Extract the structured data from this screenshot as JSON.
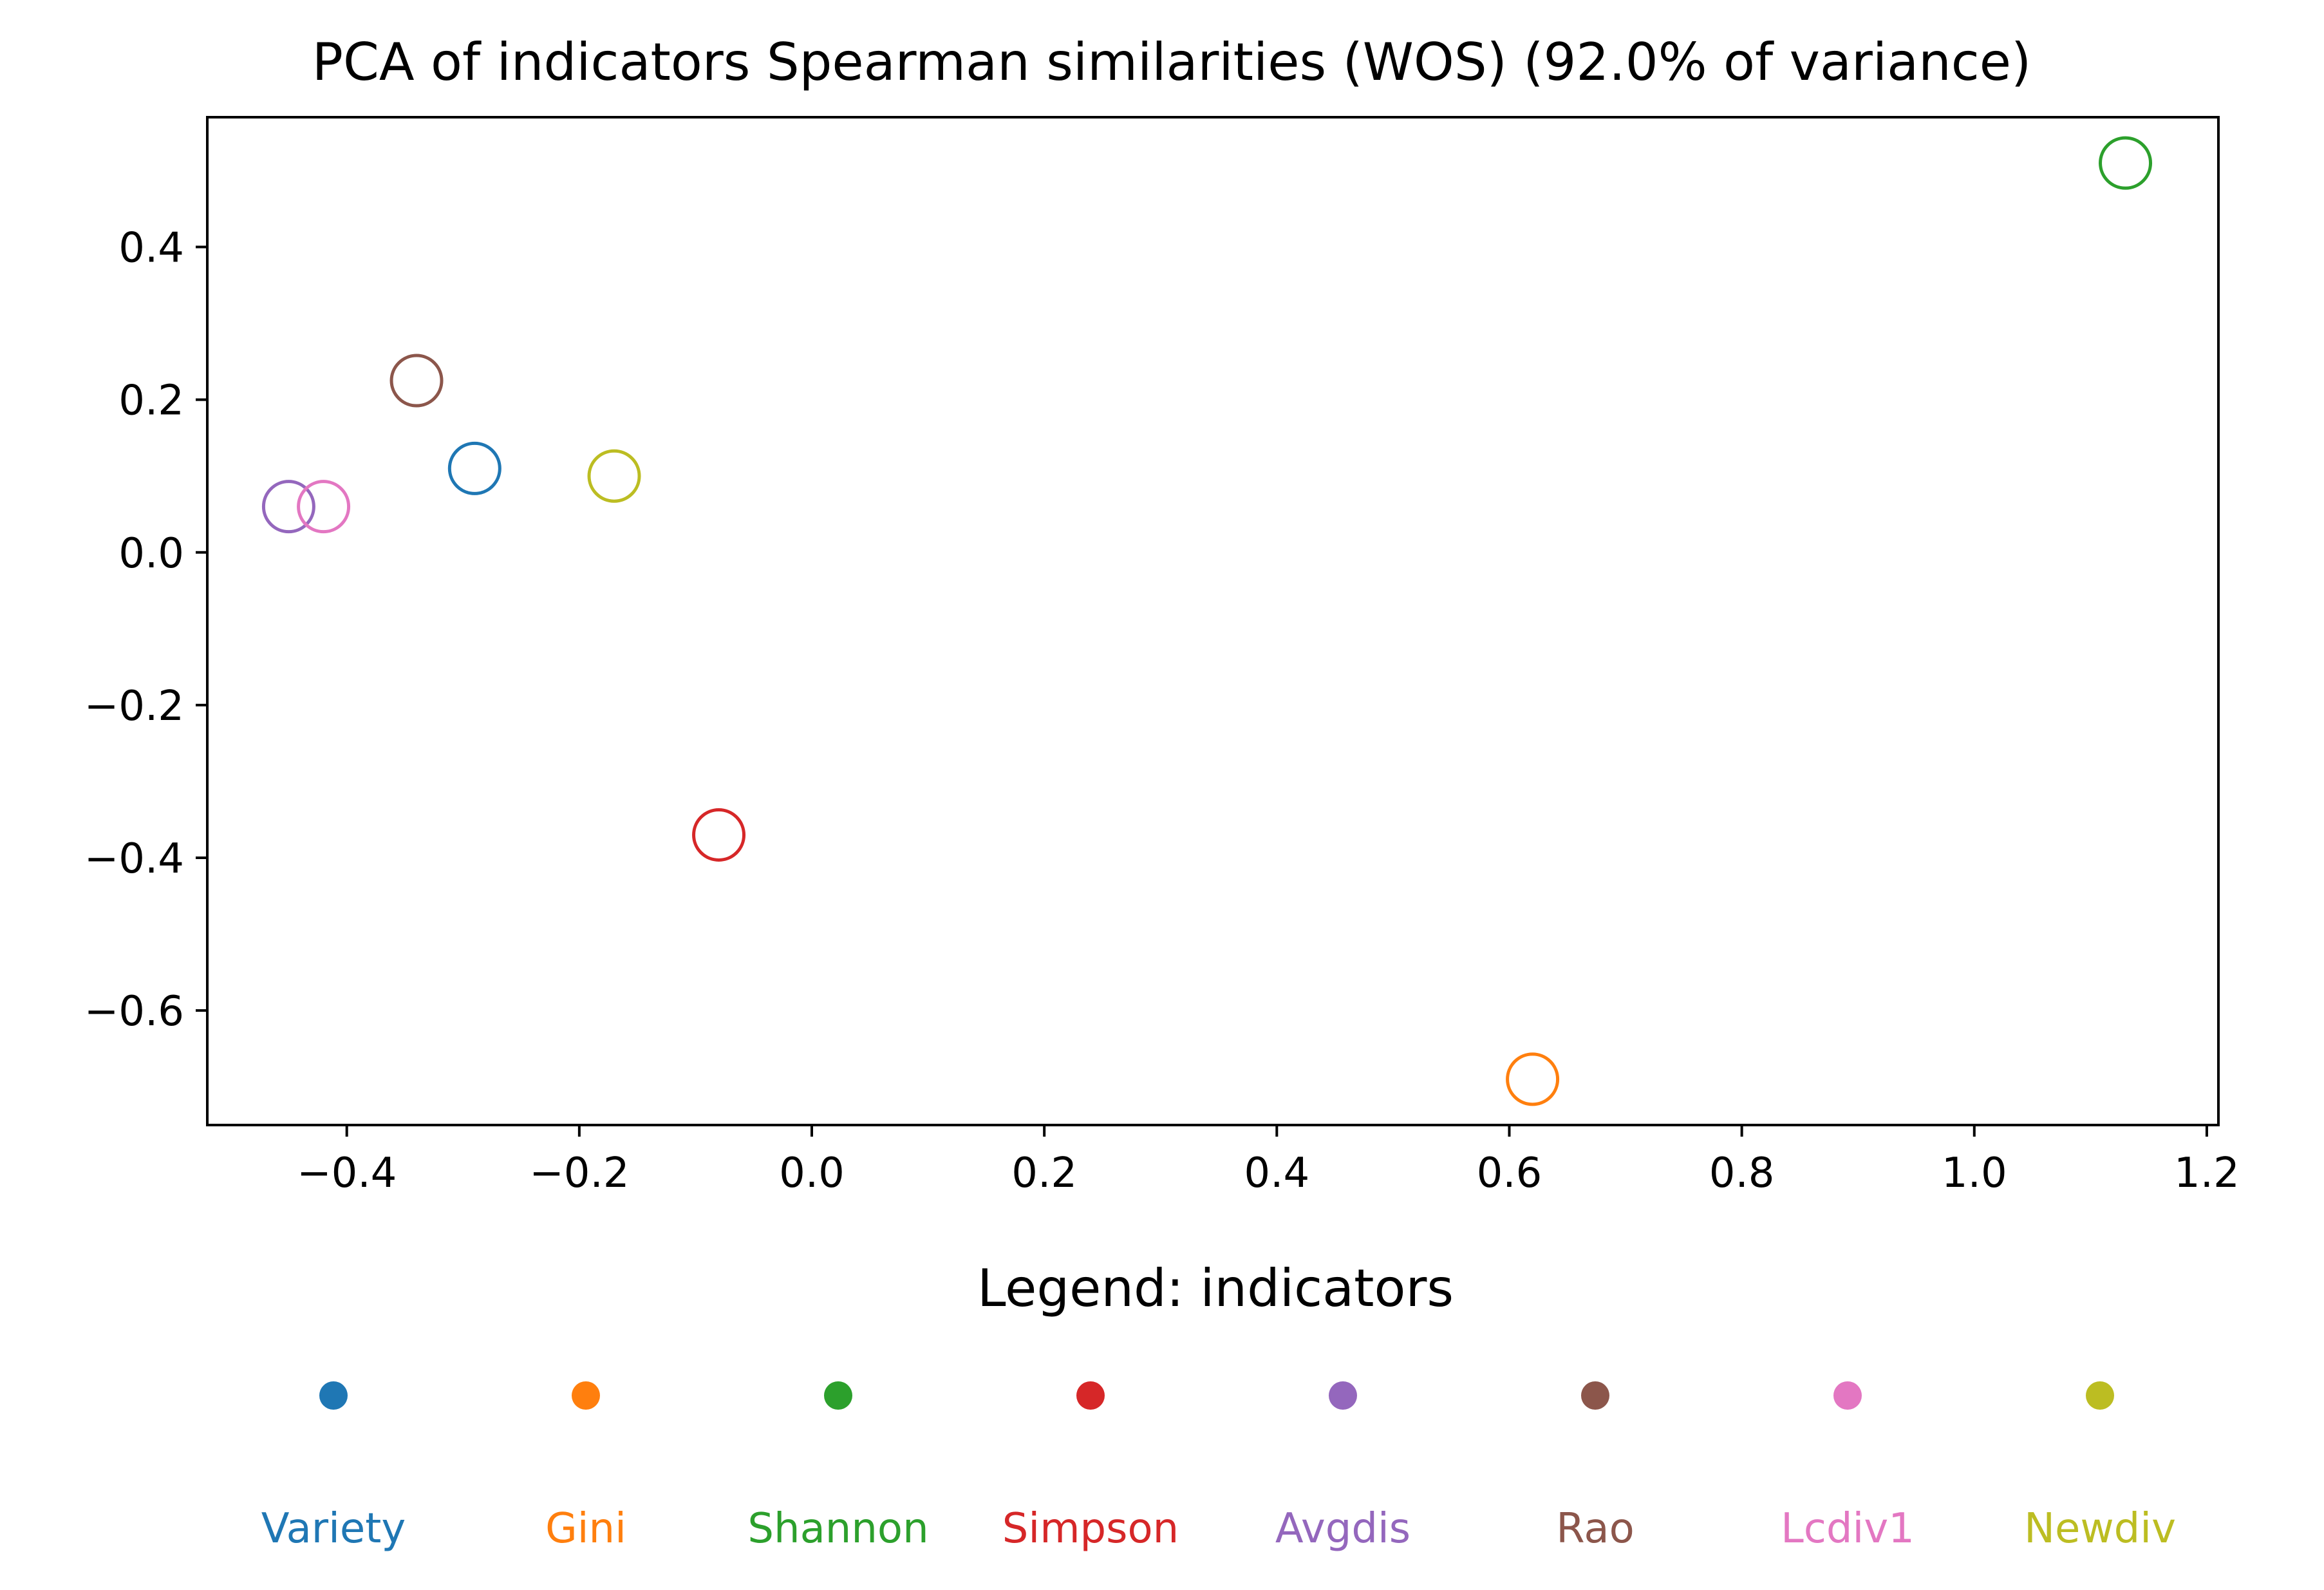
{
  "chart_data": {
    "type": "scatter",
    "title": "PCA of indicators Spearman similarities (WOS) (92.0% of variance)",
    "xlabel": "",
    "ylabel": "",
    "xlim": [
      -0.52,
      1.21
    ],
    "ylim": [
      -0.75,
      0.57
    ],
    "xticks": [
      -0.4,
      -0.2,
      0.0,
      0.2,
      0.4,
      0.6,
      0.8,
      1.0,
      1.2
    ],
    "xtick_labels": [
      "−0.4",
      "−0.2",
      "0.0",
      "0.2",
      "0.4",
      "0.6",
      "0.8",
      "1.0",
      "1.2"
    ],
    "yticks": [
      0.4,
      0.2,
      0.0,
      -0.2,
      -0.4,
      -0.6
    ],
    "ytick_labels": [
      "0.4",
      "0.2",
      "0.0",
      "−0.2",
      "−0.4",
      "−0.6"
    ],
    "grid": false,
    "marker": "open-circle",
    "points": [
      {
        "name": "Variety",
        "x": -0.29,
        "y": 0.11,
        "color": "#1f77b4"
      },
      {
        "name": "Gini",
        "x": 0.62,
        "y": -0.69,
        "color": "#ff7f0e"
      },
      {
        "name": "Shannon",
        "x": 1.13,
        "y": 0.51,
        "color": "#2ca02c"
      },
      {
        "name": "Simpson",
        "x": -0.08,
        "y": -0.37,
        "color": "#d62728"
      },
      {
        "name": "Avgdis",
        "x": -0.45,
        "y": 0.06,
        "color": "#9467bd"
      },
      {
        "name": "Rao",
        "x": -0.34,
        "y": 0.225,
        "color": "#8c564b"
      },
      {
        "name": "Lcdiv1",
        "x": -0.42,
        "y": 0.06,
        "color": "#e377c2"
      },
      {
        "name": "Newdiv",
        "x": -0.17,
        "y": 0.1,
        "color": "#bcbd22"
      }
    ],
    "legend": {
      "title": "Legend: indicators",
      "placement": "below",
      "entries": [
        "Variety",
        "Gini",
        "Shannon",
        "Simpson",
        "Avgdis",
        "Rao",
        "Lcdiv1",
        "Newdiv"
      ]
    }
  }
}
